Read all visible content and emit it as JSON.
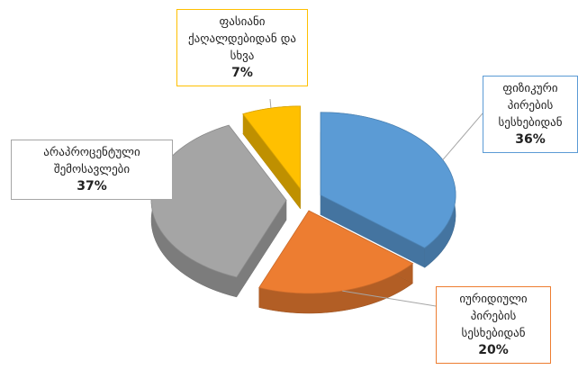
{
  "chart_data": {
    "type": "pie3d",
    "categories": [
      "ფიზიკური პირების სესხებიდან",
      "იურიდიული პირების სესხებიდან",
      "არაპროცენტული შემოსავლები",
      "ფასიანი ქაღალდებიდან და სხვა"
    ],
    "values": [
      36,
      20,
      37,
      7
    ],
    "value_labels": [
      "36%",
      "20%",
      "37%",
      "7%"
    ],
    "colors": [
      "#5b9bd5",
      "#ed7d31",
      "#a5a5a5",
      "#ffc000"
    ]
  }
}
